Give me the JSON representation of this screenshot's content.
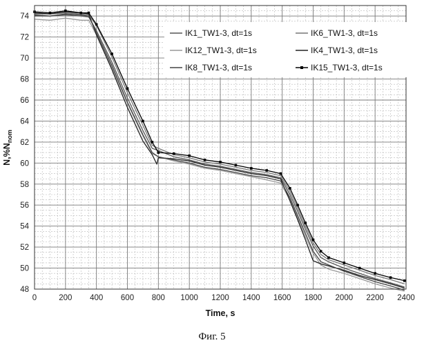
{
  "chart_data": {
    "type": "line",
    "xlabel": "Time, s",
    "ylabel_main": "N,%N",
    "ylabel_sub": "nom",
    "xlim": [
      0,
      2400
    ],
    "ylim": [
      48,
      75
    ],
    "x_ticks": [
      "0",
      "200",
      "400",
      "600",
      "800",
      "1000",
      "1200",
      "1400",
      "1600",
      "1800",
      "2000",
      "2200",
      "2400"
    ],
    "y_ticks": [
      "48",
      "50",
      "52",
      "54",
      "56",
      "58",
      "60",
      "62",
      "64",
      "66",
      "68",
      "70",
      "72",
      "74"
    ],
    "grid": true,
    "legend_position": "top-right",
    "series": [
      {
        "name": "IK1_TW1-3, dt=1s",
        "color": "#555555",
        "marker": "none",
        "x": [
          0,
          100,
          200,
          300,
          350,
          400,
          500,
          600,
          700,
          760,
          800,
          900,
          1000,
          1100,
          1200,
          1300,
          1400,
          1500,
          1590,
          1650,
          1700,
          1750,
          1800,
          1850,
          1900,
          2000,
          2100,
          2200,
          2300,
          2390
        ],
        "y": [
          74.0,
          74.0,
          74.1,
          74.0,
          73.9,
          72.6,
          69.6,
          66.2,
          63.1,
          61.4,
          61.2,
          60.6,
          60.3,
          59.9,
          59.7,
          59.4,
          59.1,
          58.9,
          58.6,
          57.0,
          55.4,
          53.7,
          52.1,
          51.0,
          50.6,
          50.0,
          49.5,
          49.0,
          48.6,
          48.2
        ]
      },
      {
        "name": "IK6_TW1-3, dt=1s",
        "color": "#777777",
        "marker": "none",
        "x": [
          0,
          100,
          200,
          300,
          350,
          400,
          500,
          600,
          700,
          760,
          800,
          900,
          1000,
          1100,
          1200,
          1300,
          1400,
          1500,
          1590,
          1650,
          1700,
          1750,
          1800,
          1850,
          1900,
          2000,
          2100,
          2200,
          2300,
          2390
        ],
        "y": [
          74.2,
          74.2,
          74.3,
          74.2,
          74.1,
          73.1,
          70.1,
          66.7,
          63.6,
          61.7,
          61.4,
          60.8,
          60.5,
          60.1,
          59.9,
          59.6,
          59.3,
          59.1,
          58.8,
          57.3,
          55.7,
          54.0,
          52.4,
          51.3,
          50.8,
          50.3,
          49.8,
          49.3,
          48.9,
          48.5
        ]
      },
      {
        "name": "IK12_TW1-3, dt=1s",
        "color": "#999999",
        "marker": "none",
        "x": [
          0,
          100,
          200,
          300,
          350,
          400,
          500,
          600,
          700,
          760,
          800,
          900,
          1000,
          1100,
          1200,
          1300,
          1400,
          1500,
          1590,
          1650,
          1700,
          1750,
          1800,
          1850,
          1900,
          2000,
          2100,
          2200,
          2300,
          2390
        ],
        "y": [
          73.7,
          73.6,
          73.8,
          73.6,
          73.6,
          72.2,
          69.1,
          65.7,
          62.6,
          60.9,
          60.6,
          60.2,
          59.9,
          59.5,
          59.3,
          59.0,
          58.7,
          58.4,
          58.1,
          56.5,
          54.8,
          53.0,
          51.4,
          50.3,
          49.9,
          49.5,
          49.0,
          48.5,
          48.1,
          47.8
        ]
      },
      {
        "name": "IK4_TW1-3, dt=1s",
        "color": "#222222",
        "marker": "none",
        "x": [
          0,
          100,
          200,
          300,
          350,
          400,
          500,
          600,
          700,
          760,
          790,
          800,
          900,
          1000,
          1100,
          1200,
          1300,
          1400,
          1500,
          1590,
          1650,
          1700,
          1750,
          1800,
          1850,
          1900,
          2000,
          2100,
          2200,
          2300,
          2390
        ],
        "y": [
          74.3,
          74.2,
          74.4,
          74.3,
          74.2,
          72.2,
          68.9,
          65.3,
          62.1,
          60.8,
          59.9,
          60.5,
          60.4,
          60.2,
          59.8,
          59.6,
          59.3,
          59.0,
          58.8,
          58.5,
          56.4,
          54.6,
          52.7,
          50.7,
          50.4,
          50.2,
          49.8,
          49.3,
          48.9,
          48.5,
          48.1
        ]
      },
      {
        "name": "IK8_TW1-3, dt=1s",
        "color": "#444444",
        "marker": "none",
        "x": [
          0,
          100,
          200,
          300,
          350,
          400,
          500,
          600,
          700,
          760,
          800,
          900,
          1000,
          1100,
          1200,
          1300,
          1400,
          1500,
          1590,
          1650,
          1700,
          1750,
          1800,
          1850,
          1900,
          2000,
          2100,
          2200,
          2300,
          2390
        ],
        "y": [
          74.1,
          74.0,
          74.2,
          74.1,
          74.0,
          72.4,
          69.3,
          65.8,
          62.7,
          61.0,
          60.6,
          60.3,
          60.0,
          59.6,
          59.4,
          59.1,
          58.8,
          58.6,
          58.3,
          56.7,
          55.0,
          53.3,
          51.6,
          50.6,
          50.3,
          49.7,
          49.2,
          48.7,
          48.3,
          47.9
        ]
      },
      {
        "name": "IK15_TW1-3, dt=1s",
        "color": "#000000",
        "marker": "square",
        "x": [
          0,
          100,
          200,
          300,
          350,
          400,
          500,
          600,
          700,
          760,
          800,
          900,
          1000,
          1100,
          1200,
          1300,
          1400,
          1500,
          1590,
          1650,
          1700,
          1750,
          1800,
          1850,
          1900,
          2000,
          2100,
          2200,
          2300,
          2390
        ],
        "y": [
          74.4,
          74.3,
          74.5,
          74.3,
          74.3,
          73.2,
          70.4,
          67.1,
          64.0,
          62.0,
          61.0,
          60.9,
          60.7,
          60.3,
          60.1,
          59.8,
          59.5,
          59.3,
          59.0,
          57.6,
          56.0,
          54.3,
          52.7,
          51.6,
          51.0,
          50.5,
          50.0,
          49.5,
          49.1,
          48.8
        ]
      }
    ]
  },
  "caption": "Фиг. 5"
}
